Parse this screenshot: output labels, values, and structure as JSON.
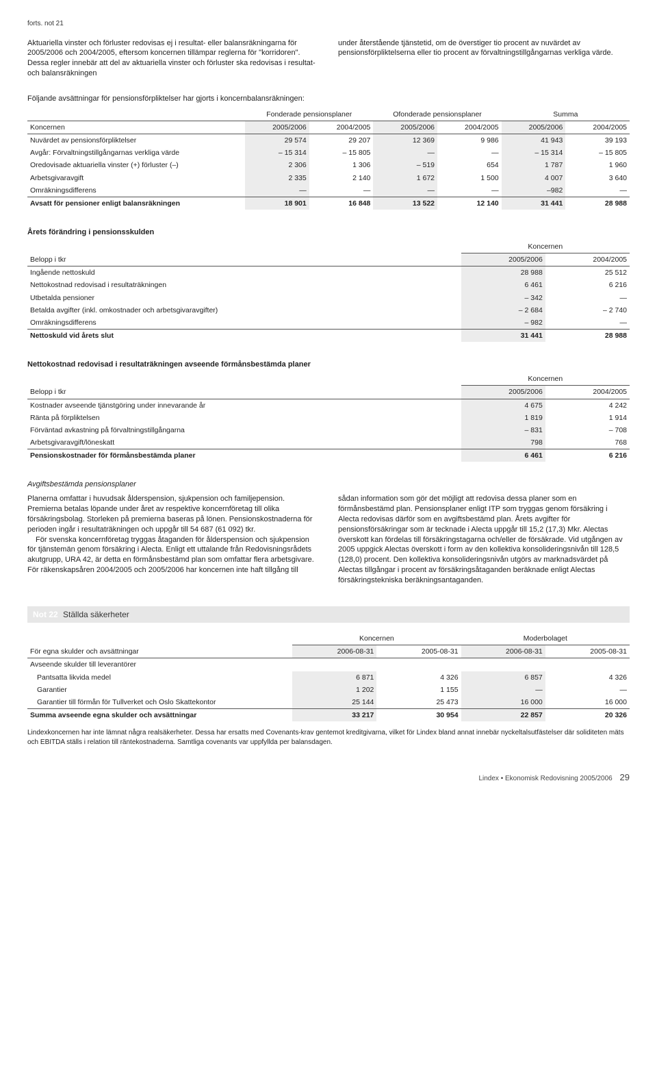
{
  "fortsnot": "forts. not 21",
  "intro": {
    "left": "Aktuariella vinster och förluster redovisas ej i resultat- eller balansräkningarna för 2005/2006 och 2004/2005, eftersom koncernen tillämpar reglerna för \"korridoren\". Dessa regler innebär att del av aktuariella vinster och förluster ska redovisas i resultat- och balansräkningen",
    "right": "under återstående tjänstetid, om de överstiger tio procent av nuvärdet av pensionsförpliktelserna eller tio procent av förvaltningstillgångarnas verkliga värde."
  },
  "table1": {
    "lead": "Följande avsättningar för pensionsförpliktelser har gjorts i koncernbalansräkningen:",
    "groupHeaders": [
      "Fonderade pensionsplaner",
      "Ofonderade pensionsplaner",
      "Summa"
    ],
    "rowLabel": "Koncernen",
    "years": [
      "2005/2006",
      "2004/2005",
      "2005/2006",
      "2004/2005",
      "2005/2006",
      "2004/2005"
    ],
    "rows": [
      [
        "Nuvärdet av pensionsförpliktelser",
        "29 574",
        "29 207",
        "12 369",
        "9 986",
        "41 943",
        "39 193"
      ],
      [
        "Avgår: Förvaltningstillgångarnas verkliga värde",
        "– 15 314",
        "– 15 805",
        "—",
        "—",
        "– 15 314",
        "– 15 805"
      ],
      [
        "Oredovisade aktuariella vinster (+) förluster (–)",
        "2 306",
        "1 306",
        "– 519",
        "654",
        "1 787",
        "1 960"
      ],
      [
        "Arbetsgivaravgift",
        "2 335",
        "2 140",
        "1 672",
        "1 500",
        "4 007",
        "3 640"
      ],
      [
        "Omräkningsdifferens",
        "—",
        "—",
        "—",
        "—",
        "–982",
        "—"
      ]
    ],
    "total": [
      "Avsatt för pensioner enligt balansräkningen",
      "18 901",
      "16 848",
      "13 522",
      "12 140",
      "31 441",
      "28 988"
    ]
  },
  "table2": {
    "title": "Årets förändring i pensionsskulden",
    "group": "Koncernen",
    "rowLabel": "Belopp i tkr",
    "years": [
      "2005/2006",
      "2004/2005"
    ],
    "rows": [
      [
        "Ingående nettoskuld",
        "28 988",
        "25 512"
      ],
      [
        "Nettokostnad redovisad i resultaträkningen",
        "6 461",
        "6 216"
      ],
      [
        "Utbetalda pensioner",
        "– 342",
        "—"
      ],
      [
        "Betalda avgifter (inkl. omkostnader och arbetsgivaravgifter)",
        "– 2 684",
        "– 2 740"
      ],
      [
        "Omräkningsdifferens",
        "– 982",
        "—"
      ]
    ],
    "total": [
      "Nettoskuld vid årets slut",
      "31 441",
      "28 988"
    ]
  },
  "table3": {
    "title": "Nettokostnad redovisad i resultaträkningen avseende förmånsbestämda planer",
    "group": "Koncernen",
    "rowLabel": "Belopp i tkr",
    "years": [
      "2005/2006",
      "2004/2005"
    ],
    "rows": [
      [
        "Kostnader avseende tjänstgöring under innevarande år",
        "4 675",
        "4 242"
      ],
      [
        "Ränta på förpliktelsen",
        "1 819",
        "1 914"
      ],
      [
        "Förväntad avkastning på förvaltningstillgångarna",
        "– 831",
        "– 708"
      ],
      [
        "Arbetsgivaravgift/löneskatt",
        "798",
        "768"
      ]
    ],
    "total": [
      "Pensionskostnader för förmånsbestämda planer",
      "6 461",
      "6 216"
    ]
  },
  "body": {
    "subhead": "Avgiftsbestämda pensionsplaner",
    "left1": "Planerna omfattar i huvudsak ålderspension, sjukpension och familjepension. Premierna betalas löpande under året av respektive koncernföretag till olika försäkringsbolag. Storleken på premierna baseras på lönen. Pensionskostnaderna för perioden ingår i resultaträkningen och uppgår till 54 687 (61 092) tkr.",
    "left2": "För svenska koncernföretag tryggas åtaganden för ålderspension och sjukpension för tjänstemän genom försäkring i Alecta. Enligt ett uttalande från Redovisningsrådets akutgrupp, URA 42, är detta en förmånsbestämd plan som omfattar flera arbetsgivare. För räkenskapsåren 2004/2005 och 2005/2006 har koncernen inte haft tillgång till",
    "right": "sådan information som gör det möjligt att redovisa dessa planer som en förmånsbestämd plan. Pensionsplaner enligt ITP som tryggas genom försäkring i Alecta redovisas därför som en avgiftsbestämd plan. Årets avgifter för pensionsförsäkringar som är tecknade i Alecta uppgår till 15,2 (17,3) Mkr. Alectas överskott kan fördelas till försäkringstagarna och/eller de försäkrade. Vid utgången av 2005 uppgick Alectas överskott i form av den kollektiva konsolideringsnivån till 128,5 (128,0) procent. Den kollektiva konsolideringsnivån utgörs av marknadsvärdet på Alectas tillgångar i procent av försäkringsåtaganden beräknade enligt Alectas försäkringstekniska beräkningsantaganden."
  },
  "not22": {
    "num": "Not 22",
    "title": "Ställda säkerheter",
    "groups": [
      "Koncernen",
      "Moderbolaget"
    ],
    "rowLabel": "För egna skulder och avsättningar",
    "years": [
      "2006-08-31",
      "2005-08-31",
      "2006-08-31",
      "2005-08-31"
    ],
    "sub": "Avseende skulder till leverantörer",
    "rows": [
      [
        "Pantsatta likvida medel",
        "6 871",
        "4 326",
        "6 857",
        "4 326"
      ],
      [
        "Garantier",
        "1 202",
        "1 155",
        "—",
        "—"
      ],
      [
        "Garantier till förmån för Tullverket och Oslo Skattekontor",
        "25 144",
        "25 473",
        "16 000",
        "16 000"
      ]
    ],
    "total": [
      "Summa avseende egna skulder och avsättningar",
      "33 217",
      "30 954",
      "22 857",
      "20 326"
    ],
    "footnote": "Lindexkoncernen har inte lämnat några realsäkerheter. Dessa har ersatts med Covenants-krav gentemot kreditgivarna, vilket för Lindex bland annat innebär nyckeltalsutfästelser där soliditeten mäts och EBITDA ställs i relation till räntekostnaderna. Samtliga covenants var uppfyllda per balansdagen."
  },
  "footer": {
    "src": "Lindex • Ekonomisk Redovisning 2005/2006",
    "page": "29"
  }
}
